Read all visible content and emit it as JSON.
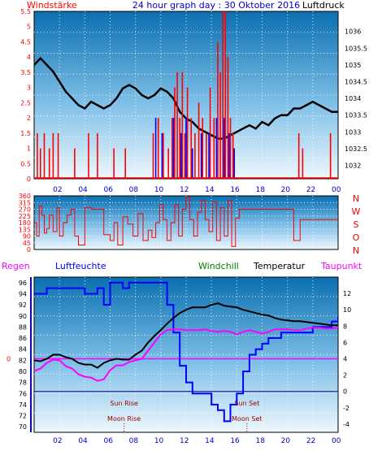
{
  "header": {
    "left_label": "Windstärke",
    "title": "24 hour graph day : 30 Oktober 2016",
    "right_label": "Luftdruck"
  },
  "colors": {
    "wind": "#ff0000",
    "wind_dir": "#ff0000",
    "pressure": "#000000",
    "gust_blue": "#0000ff",
    "humidity": "#0000ff",
    "temperature": "#000000",
    "dewpoint": "#ff00ff",
    "frame_blue": "#0000ff",
    "sky_top": "#0a6fb0",
    "sky_bottom": "#e8f4fc"
  },
  "chart_data": [
    {
      "type": "line",
      "panel": "wind-pressure",
      "x_ticks": [
        "02",
        "04",
        "06",
        "08",
        "10",
        "12",
        "14",
        "16",
        "18",
        "20",
        "22",
        "00"
      ],
      "left_axis": {
        "label": "Windstärke",
        "ticks": [
          "5.5",
          "5",
          "4.5",
          "4",
          "3.5",
          "3",
          "2.5",
          "2",
          "1.5",
          "1",
          "0.5",
          "0"
        ],
        "ylim": [
          0,
          5.5
        ]
      },
      "right_axis": {
        "label": "Luftdruck",
        "ticks": [
          "1036",
          "1035.5",
          "1035",
          "1034.5",
          "1034",
          "1033.5",
          "1033",
          "1032.5",
          "1032"
        ],
        "ylim": [
          1031.6,
          1036.6
        ]
      },
      "series": [
        {
          "name": "Luftdruck",
          "axis": "right",
          "x": [
            0.0,
            0.5,
            1.0,
            1.5,
            2.0,
            2.5,
            3.0,
            3.5,
            4.0,
            4.5,
            5.0,
            5.5,
            6.0,
            6.5,
            7.0,
            7.5,
            8.0,
            8.5,
            9.0,
            9.5,
            10.0,
            10.5,
            11.0,
            11.5,
            12.0,
            12.5,
            13.0,
            13.5,
            14.0,
            14.5,
            15.0,
            15.5,
            16.0,
            16.5,
            17.0,
            17.5,
            18.0,
            18.5,
            19.0,
            19.5,
            20.0,
            20.5,
            21.0,
            21.5,
            22.0,
            22.5,
            23.0,
            23.5,
            24.0
          ],
          "values": [
            1035.0,
            1035.2,
            1035.0,
            1034.8,
            1034.5,
            1034.2,
            1034.0,
            1033.8,
            1033.7,
            1033.9,
            1033.8,
            1033.7,
            1033.8,
            1034.0,
            1034.3,
            1034.4,
            1034.3,
            1034.1,
            1034.0,
            1034.1,
            1034.3,
            1034.2,
            1034.0,
            1033.6,
            1033.4,
            1033.3,
            1033.1,
            1033.0,
            1032.9,
            1032.8,
            1032.8,
            1032.9,
            1033.0,
            1033.1,
            1033.2,
            1033.1,
            1033.3,
            1033.2,
            1033.4,
            1033.5,
            1033.5,
            1033.7,
            1033.7,
            1033.8,
            1033.9,
            1033.8,
            1033.7,
            1033.6,
            1033.6
          ]
        },
        {
          "name": "Windstärke",
          "axis": "left",
          "style": "bars",
          "color": "#ff0000",
          "x": [
            0.25,
            0.5,
            0.8,
            1.2,
            1.5,
            1.9,
            3.2,
            4.3,
            5.0,
            6.3,
            7.2,
            9.4,
            9.8,
            10.2,
            10.6,
            10.9,
            11.1,
            11.3,
            11.5,
            11.7,
            11.9,
            12.1,
            12.4,
            12.7,
            13.0,
            13.3,
            13.6,
            13.9,
            14.2,
            14.5,
            14.7,
            14.9,
            15.1,
            15.3,
            15.5,
            15.7,
            20.9,
            21.2,
            23.4
          ],
          "values": [
            1.5,
            1.0,
            1.5,
            1.0,
            1.5,
            1.5,
            1.0,
            1.5,
            1.5,
            1.0,
            1.0,
            1.5,
            2.0,
            1.5,
            1.0,
            2.0,
            3.0,
            3.5,
            2.0,
            3.5,
            1.5,
            3.0,
            2.0,
            1.5,
            2.5,
            2.0,
            1.5,
            3.0,
            2.0,
            4.5,
            3.5,
            5.5,
            5.5,
            4.0,
            2.0,
            1.5,
            1.5,
            1.0,
            1.5
          ]
        },
        {
          "name": "Böen",
          "axis": "left",
          "style": "bars",
          "color": "#0000ff",
          "x": [
            9.6,
            10.1,
            11.0,
            11.6,
            12.0,
            12.5,
            13.2,
            13.8,
            14.4,
            15.0,
            15.4,
            15.8
          ],
          "values": [
            2.0,
            1.5,
            2.0,
            1.5,
            2.0,
            1.0,
            1.5,
            1.5,
            2.0,
            2.0,
            1.5,
            1.0
          ]
        }
      ]
    },
    {
      "type": "line",
      "panel": "wind-direction",
      "x_ticks": [
        "02",
        "04",
        "06",
        "08",
        "10",
        "12",
        "14",
        "16",
        "18",
        "20",
        "22",
        "00"
      ],
      "left_axis": {
        "ticks": [
          "360",
          "315",
          "270",
          "225",
          "180",
          "135",
          "90",
          "45",
          "0"
        ],
        "ylim": [
          0,
          360
        ]
      },
      "right_axis": {
        "ticks": [
          "N",
          "W",
          "S",
          "O",
          "N"
        ]
      },
      "series": [
        {
          "name": "Windrichtung",
          "x": [
            0.0,
            0.2,
            0.4,
            0.6,
            0.8,
            1.0,
            1.2,
            1.5,
            1.8,
            2.0,
            2.3,
            2.6,
            2.9,
            3.2,
            3.5,
            4.0,
            4.5,
            5.0,
            5.5,
            6.0,
            6.3,
            6.6,
            7.0,
            7.4,
            7.8,
            8.2,
            8.6,
            9.0,
            9.3,
            9.6,
            9.9,
            10.2,
            10.5,
            10.8,
            11.1,
            11.4,
            11.7,
            12.0,
            12.3,
            12.6,
            12.9,
            13.2,
            13.5,
            13.8,
            14.1,
            14.4,
            14.7,
            15.0,
            15.3,
            15.6,
            15.9,
            16.2,
            16.5,
            17.0,
            18.0,
            19.0,
            20.0,
            20.5,
            21.0,
            22.0,
            23.0,
            24.0
          ],
          "values": [
            180,
            90,
            290,
            230,
            110,
            140,
            230,
            120,
            280,
            90,
            180,
            230,
            270,
            90,
            30,
            280,
            270,
            270,
            100,
            60,
            180,
            30,
            220,
            170,
            90,
            240,
            60,
            130,
            80,
            180,
            300,
            200,
            60,
            180,
            300,
            90,
            270,
            350,
            200,
            90,
            250,
            330,
            200,
            120,
            320,
            60,
            280,
            90,
            330,
            20,
            210,
            270,
            270,
            270,
            270,
            270,
            270,
            60,
            200,
            200,
            200,
            200
          ]
        }
      ]
    },
    {
      "type": "line",
      "panel": "temperature-humidity",
      "legend": [
        "Regen",
        "Luftfeuchte",
        "Windchill",
        "Temperatur",
        "Taupunkt"
      ],
      "x_ticks": [
        "02",
        "04",
        "06",
        "08",
        "10",
        "12",
        "14",
        "16",
        "18",
        "20",
        "22",
        "00"
      ],
      "rain_axis": {
        "label": "Regen",
        "ticks": [
          "0"
        ]
      },
      "left_axis": {
        "label": "Luftfeuchte",
        "ticks": [
          "96",
          "94",
          "92",
          "90",
          "88",
          "86",
          "84",
          "82",
          "80",
          "78",
          "76",
          "74",
          "72",
          "70"
        ],
        "ylim": [
          69,
          97
        ]
      },
      "right_axis": {
        "label": "Temperatur",
        "ticks": [
          "12",
          "10",
          "8",
          "6",
          "4",
          "2",
          "0",
          "-2",
          "-4"
        ],
        "ylim": [
          -5,
          14
        ]
      },
      "annotations": [
        {
          "label": "Sun Rise",
          "x": 7.1
        },
        {
          "label": "Moon Rise",
          "x": 7.1
        },
        {
          "label": "Sun Set",
          "x": 16.8
        },
        {
          "label": "Moon Set",
          "x": 16.8
        }
      ],
      "series": [
        {
          "name": "Luftfeuchte",
          "axis": "left",
          "x": [
            0.0,
            0.5,
            1.0,
            1.5,
            2.0,
            2.5,
            3.0,
            3.5,
            4.0,
            4.5,
            5.0,
            5.5,
            6.0,
            6.5,
            7.0,
            7.5,
            8.0,
            8.5,
            9.0,
            9.5,
            10.0,
            10.5,
            11.0,
            11.5,
            12.0,
            12.5,
            13.0,
            13.5,
            14.0,
            14.5,
            15.0,
            15.5,
            16.0,
            16.5,
            17.0,
            17.5,
            18.0,
            18.5,
            19.0,
            19.5,
            20.0,
            20.5,
            21.0,
            21.5,
            22.0,
            22.5,
            23.0,
            23.5,
            24.0
          ],
          "values": [
            94,
            94,
            95,
            95,
            95,
            95,
            95,
            95,
            94,
            94,
            95,
            92,
            96,
            96,
            95,
            96,
            96,
            96,
            96,
            96,
            96,
            92,
            87,
            81,
            78,
            76,
            76,
            76,
            74,
            73,
            71,
            74,
            76,
            80,
            83,
            84,
            85,
            86,
            86,
            87,
            87,
            87,
            87,
            87,
            88,
            88,
            88,
            89,
            90
          ]
        },
        {
          "name": "Temperatur",
          "axis": "right",
          "x": [
            0.0,
            0.5,
            1.0,
            1.5,
            2.0,
            2.5,
            3.0,
            3.5,
            4.0,
            4.5,
            5.0,
            5.5,
            6.0,
            6.5,
            7.0,
            7.5,
            8.0,
            8.5,
            9.0,
            9.5,
            10.0,
            10.5,
            11.0,
            11.5,
            12.0,
            12.5,
            13.0,
            13.5,
            14.0,
            14.5,
            15.0,
            15.5,
            16.0,
            16.5,
            17.0,
            17.5,
            18.0,
            18.5,
            19.0,
            19.5,
            20.0,
            20.5,
            21.0,
            21.5,
            22.0,
            22.5,
            23.0,
            23.5,
            24.0
          ],
          "values": [
            3.8,
            3.7,
            4.0,
            4.5,
            4.5,
            4.2,
            4.0,
            3.5,
            3.3,
            3.3,
            2.9,
            3.5,
            3.8,
            4.0,
            3.9,
            3.9,
            4.5,
            5.0,
            6.0,
            6.8,
            7.5,
            8.3,
            9.0,
            9.6,
            10.0,
            10.3,
            10.3,
            10.3,
            10.6,
            10.8,
            10.5,
            10.4,
            10.3,
            10.0,
            9.8,
            9.6,
            9.4,
            9.3,
            9.0,
            8.8,
            8.7,
            8.6,
            8.6,
            8.5,
            8.4,
            8.3,
            8.2,
            8.1,
            8.1
          ]
        },
        {
          "name": "Taupunkt",
          "axis": "right",
          "x": [
            0.0,
            0.5,
            1.0,
            1.5,
            2.0,
            2.5,
            3.0,
            3.5,
            4.0,
            4.5,
            5.0,
            5.5,
            6.0,
            6.5,
            7.0,
            7.5,
            8.0,
            8.5,
            9.0,
            9.5,
            10.0,
            10.5,
            11.0,
            11.5,
            12.0,
            12.5,
            13.0,
            13.5,
            14.0,
            14.5,
            15.0,
            15.5,
            16.0,
            16.5,
            17.0,
            17.5,
            18.0,
            18.5,
            19.0,
            19.5,
            20.0,
            20.5,
            21.0,
            21.5,
            22.0,
            22.5,
            23.0,
            23.5,
            24.0
          ],
          "values": [
            2.5,
            2.8,
            3.5,
            3.9,
            3.8,
            3.1,
            2.8,
            2.1,
            1.8,
            1.7,
            1.3,
            1.5,
            2.6,
            3.2,
            3.2,
            3.6,
            3.8,
            4.0,
            5.0,
            6.0,
            7.0,
            7.5,
            7.6,
            7.6,
            7.5,
            7.5,
            7.5,
            7.6,
            7.4,
            7.3,
            7.4,
            7.3,
            7.0,
            7.3,
            7.5,
            7.3,
            7.1,
            7.3,
            7.6,
            7.6,
            7.6,
            7.5,
            7.5,
            7.7,
            7.8,
            7.8,
            7.7,
            7.7,
            7.8
          ]
        },
        {
          "name": "Regen",
          "axis": "rain",
          "values": [
            0
          ]
        }
      ]
    }
  ]
}
